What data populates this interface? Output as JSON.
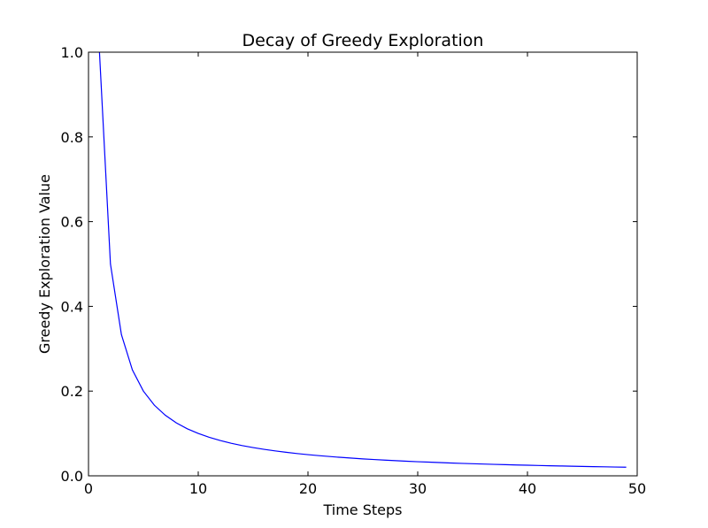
{
  "chart_data": {
    "type": "line",
    "title": "Decay of Greedy Exploration",
    "xlabel": "Time Steps",
    "ylabel": "Greedy Exploration Value",
    "xlim": [
      0,
      50
    ],
    "ylim": [
      0,
      1.0
    ],
    "xticks": [
      0,
      10,
      20,
      30,
      40,
      50
    ],
    "xtick_labels": [
      "0",
      "10",
      "20",
      "30",
      "40",
      "50"
    ],
    "yticks": [
      0,
      0.2,
      0.4,
      0.6,
      0.8,
      1.0
    ],
    "ytick_labels": [
      "0.0",
      "0.2",
      "0.4",
      "0.6",
      "0.8",
      "1.0"
    ],
    "grid": false,
    "series": [
      {
        "color": "#0000ff",
        "x": [
          1,
          2,
          3,
          4,
          5,
          6,
          7,
          8,
          9,
          10,
          11,
          12,
          13,
          14,
          15,
          16,
          17,
          18,
          19,
          20,
          21,
          22,
          23,
          24,
          25,
          26,
          27,
          28,
          29,
          30,
          31,
          32,
          33,
          34,
          35,
          36,
          37,
          38,
          39,
          40,
          41,
          42,
          43,
          44,
          45,
          46,
          47,
          48,
          49
        ],
        "y": [
          1.0,
          0.5,
          0.3333,
          0.25,
          0.2,
          0.1667,
          0.1429,
          0.125,
          0.1111,
          0.1,
          0.0909,
          0.0833,
          0.0769,
          0.0714,
          0.0667,
          0.0625,
          0.0588,
          0.0556,
          0.0526,
          0.05,
          0.0476,
          0.0455,
          0.0435,
          0.0417,
          0.04,
          0.0385,
          0.037,
          0.0357,
          0.0345,
          0.0333,
          0.0323,
          0.0313,
          0.0303,
          0.0294,
          0.0286,
          0.0278,
          0.027,
          0.0263,
          0.0256,
          0.025,
          0.0244,
          0.0238,
          0.0233,
          0.0227,
          0.0222,
          0.0217,
          0.0213,
          0.0208,
          0.0204
        ]
      }
    ]
  }
}
